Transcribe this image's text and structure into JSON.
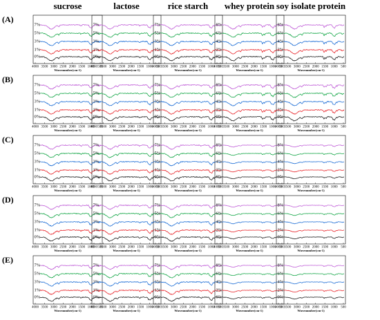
{
  "columns": [
    "sucrose",
    "lactose",
    "rice starch",
    "whey protein",
    "soy isolate protein"
  ],
  "rows": [
    "(A)",
    "(B)",
    "(C)",
    "(D)",
    "(E)"
  ],
  "colors": {
    "0%": "#222222",
    "1%": "#e8262b",
    "3%": "#1f6fd6",
    "5%": "#18a84a",
    "7%": "#c05fd8"
  },
  "chart_data": {
    "type": "line",
    "layout": "5x5 grid of FTIR spectra panels",
    "xlabel": "Wavenumber(cm-1)",
    "x_ticks": [
      4000,
      3500,
      3000,
      2500,
      2000,
      1500,
      1000,
      500
    ],
    "xlim": [
      4000,
      500
    ],
    "x_reversed": true,
    "series_labels_default": [
      "0%",
      "1%",
      "3%",
      "5%",
      "7%"
    ],
    "series_labels_protein": [
      "0%",
      "2%",
      "4%",
      "6%",
      "8%"
    ],
    "grid": false,
    "legend": "inline labels at left of each trace",
    "panels": [
      {
        "row": "(A)",
        "column": "sucrose",
        "labels": [
          "0%",
          "1%",
          "3%",
          "5%",
          "7%"
        ]
      },
      {
        "row": "(A)",
        "column": "lactose",
        "labels": [
          "0%",
          "1%",
          "3%",
          "5%",
          "7%"
        ]
      },
      {
        "row": "(A)",
        "column": "rice starch",
        "labels": [
          "0%",
          "1%",
          "3%",
          "5%",
          "7%"
        ]
      },
      {
        "row": "(A)",
        "column": "whey protein",
        "labels": [
          "0%",
          "2%",
          "4%",
          "6%",
          "8%"
        ]
      },
      {
        "row": "(A)",
        "column": "soy isolate protein",
        "labels": [
          "0%",
          "2%",
          "4%",
          "6%",
          "8%"
        ]
      },
      {
        "row": "(B)",
        "column": "sucrose",
        "labels": [
          "0%",
          "1%",
          "3%",
          "5%",
          "7%"
        ]
      },
      {
        "row": "(B)",
        "column": "lactose",
        "labels": [
          "0%",
          "1%",
          "3%",
          "5%",
          "7%"
        ]
      },
      {
        "row": "(B)",
        "column": "rice starch",
        "labels": [
          "0%",
          "1%",
          "3%",
          "5%",
          "7%"
        ]
      },
      {
        "row": "(B)",
        "column": "whey protein",
        "labels": [
          "0%",
          "2%",
          "4%",
          "6%",
          "8%"
        ]
      },
      {
        "row": "(B)",
        "column": "soy isolate protein",
        "labels": [
          "0%",
          "2%",
          "4%",
          "6%",
          "8%"
        ]
      },
      {
        "row": "(C)",
        "column": "sucrose",
        "labels": [
          "0%",
          "1%",
          "3%",
          "5%",
          "7%"
        ]
      },
      {
        "row": "(C)",
        "column": "lactose",
        "labels": [
          "0%",
          "1%",
          "3%",
          "5%",
          "7%"
        ]
      },
      {
        "row": "(C)",
        "column": "rice starch",
        "labels": [
          "0%",
          "1%",
          "3%",
          "5%",
          "7%"
        ]
      },
      {
        "row": "(C)",
        "column": "whey protein",
        "labels": [
          "0%",
          "2%",
          "4%",
          "6%",
          "8%"
        ]
      },
      {
        "row": "(C)",
        "column": "soy isolate protein",
        "labels": [
          "0%",
          "2%",
          "4%",
          "6%",
          "8%"
        ]
      },
      {
        "row": "(D)",
        "column": "sucrose",
        "labels": [
          "0%",
          "1%",
          "3%",
          "5%",
          "7%"
        ]
      },
      {
        "row": "(D)",
        "column": "lactose",
        "labels": [
          "0%",
          "1%",
          "3%",
          "5%",
          "7%"
        ]
      },
      {
        "row": "(D)",
        "column": "rice starch",
        "labels": [
          "0%",
          "1%",
          "3%",
          "5%",
          "7%"
        ]
      },
      {
        "row": "(D)",
        "column": "whey protein",
        "labels": [
          "0%",
          "2%",
          "4%",
          "6%",
          "8%"
        ]
      },
      {
        "row": "(D)",
        "column": "soy isolate protein",
        "labels": [
          "0%",
          "2%",
          "4%",
          "6%",
          "8%"
        ]
      },
      {
        "row": "(E)",
        "column": "sucrose",
        "labels": [
          "0%",
          "1%",
          "3%",
          "5%",
          "7%"
        ]
      },
      {
        "row": "(E)",
        "column": "lactose",
        "labels": [
          "0%",
          "1%",
          "3%",
          "5%",
          "7%"
        ]
      },
      {
        "row": "(E)",
        "column": "rice starch",
        "labels": [
          "0%",
          "1%",
          "3%",
          "5%",
          "7%"
        ]
      },
      {
        "row": "(E)",
        "column": "whey protein",
        "labels": [
          "0%",
          "2%",
          "4%",
          "6%",
          "8%"
        ]
      },
      {
        "row": "(E)",
        "column": "soy isolate protein",
        "labels": [
          "0%",
          "2%",
          "4%",
          "6%",
          "8%"
        ]
      }
    ]
  }
}
